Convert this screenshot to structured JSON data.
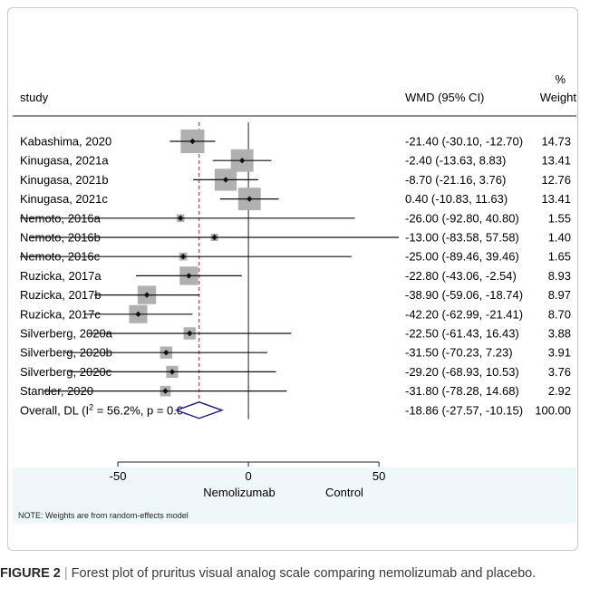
{
  "chart_data": {
    "type": "forest",
    "headers": {
      "study": "study",
      "effect": "WMD (95% CI)",
      "weight_top": "%",
      "weight": "Weight"
    },
    "xaxis": {
      "ticks": [
        -50,
        0,
        50
      ],
      "ticklabels": [
        "-50",
        "0",
        "50"
      ],
      "range": [
        -83.58,
        57.58
      ],
      "left_label": "Nemolizumab",
      "right_label": "Control"
    },
    "overall_line": -18.86,
    "studies": [
      {
        "label": "Kabashima, 2020",
        "est": -21.4,
        "lo": -30.1,
        "hi": -12.7,
        "ci_text": "-21.40 (-30.10, -12.70)",
        "weight": 14.73,
        "weight_text": "14.73"
      },
      {
        "label": "Kinugasa, 2021a",
        "est": -2.4,
        "lo": -13.63,
        "hi": 8.83,
        "ci_text": "-2.40 (-13.63, 8.83)",
        "weight": 13.41,
        "weight_text": "13.41"
      },
      {
        "label": "Kinugasa, 2021b",
        "est": -8.7,
        "lo": -21.16,
        "hi": 3.76,
        "ci_text": "-8.70 (-21.16, 3.76)",
        "weight": 12.76,
        "weight_text": "12.76"
      },
      {
        "label": "Kinugasa, 2021c",
        "est": 0.4,
        "lo": -10.83,
        "hi": 11.63,
        "ci_text": "0.40 (-10.83, 11.63)",
        "weight": 13.41,
        "weight_text": "13.41"
      },
      {
        "label": "Nemoto, 2016a",
        "est": -26.0,
        "lo": -92.8,
        "hi": 40.8,
        "ci_text": "-26.00 (-92.80, 40.80)",
        "weight": 1.55,
        "weight_text": "1.55"
      },
      {
        "label": "Nemoto, 2016b",
        "est": -13.0,
        "lo": -83.58,
        "hi": 57.58,
        "ci_text": "-13.00 (-83.58, 57.58)",
        "weight": 1.4,
        "weight_text": "1.40"
      },
      {
        "label": "Nemoto, 2016c",
        "est": -25.0,
        "lo": -89.46,
        "hi": 39.46,
        "ci_text": "-25.00 (-89.46, 39.46)",
        "weight": 1.65,
        "weight_text": "1.65"
      },
      {
        "label": "Ruzicka, 2017a",
        "est": -22.8,
        "lo": -43.06,
        "hi": -2.54,
        "ci_text": "-22.80 (-43.06, -2.54)",
        "weight": 8.93,
        "weight_text": "8.93"
      },
      {
        "label": "Ruzicka, 2017b",
        "est": -38.9,
        "lo": -59.06,
        "hi": -18.74,
        "ci_text": "-38.90 (-59.06, -18.74)",
        "weight": 8.97,
        "weight_text": "8.97"
      },
      {
        "label": "Ruzicka, 2017c",
        "est": -42.2,
        "lo": -62.99,
        "hi": -21.41,
        "ci_text": "-42.20 (-62.99, -21.41)",
        "weight": 8.7,
        "weight_text": "8.70"
      },
      {
        "label": "Silverberg, 2020a",
        "est": -22.5,
        "lo": -61.43,
        "hi": 16.43,
        "ci_text": "-22.50 (-61.43, 16.43)",
        "weight": 3.88,
        "weight_text": "3.88"
      },
      {
        "label": "Silverberg, 2020b",
        "est": -31.5,
        "lo": -70.23,
        "hi": 7.23,
        "ci_text": "-31.50 (-70.23, 7.23)",
        "weight": 3.91,
        "weight_text": "3.91"
      },
      {
        "label": "Silverberg, 2020c",
        "est": -29.2,
        "lo": -68.93,
        "hi": 10.53,
        "ci_text": "-29.20 (-68.93, 10.53)",
        "weight": 3.76,
        "weight_text": "3.76"
      },
      {
        "label": "Stander, 2020",
        "est": -31.8,
        "lo": -78.28,
        "hi": 14.68,
        "ci_text": "-31.80 (-78.28, 14.68)",
        "weight": 2.92,
        "weight_text": "2.92"
      }
    ],
    "overall": {
      "label_prefix": "Overall, DL (I",
      "label_sup": "2",
      "label_suffix": " = 56.2%, p = 0.005)",
      "est": -18.86,
      "lo": -27.57,
      "hi": -10.15,
      "ci_text": "-18.86 (-27.57, -10.15)",
      "weight": 100.0,
      "weight_text": "100.00"
    },
    "colors": {
      "square": "#b0b0b0",
      "diamond": "#1f1f7a",
      "dash_line": "#b3122e",
      "panel": "#eef7f9"
    }
  },
  "note": "NOTE: Weights are from random-effects model",
  "caption": {
    "label": "FIGURE 2",
    "separator": "|",
    "text": "Forest plot of pruritus visual analog scale comparing nemolizumab and placebo."
  }
}
